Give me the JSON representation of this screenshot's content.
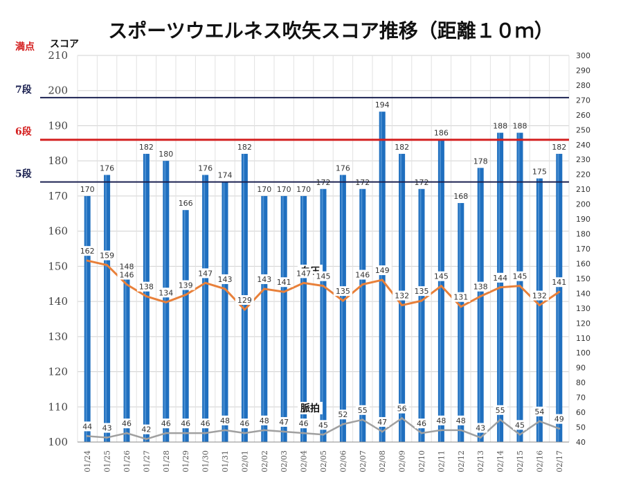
{
  "chart_data": {
    "type": "bar",
    "title": "スポーツウエルネス吹矢スコア推移（距離１０ｍ）",
    "ylabel": "スコア",
    "ylim": [
      100,
      210
    ],
    "y_ticks": [
      100,
      110,
      120,
      130,
      140,
      150,
      160,
      170,
      180,
      190,
      200,
      210
    ],
    "y2lim": [
      40,
      300
    ],
    "y2_ticks": [
      40,
      50,
      60,
      70,
      80,
      90,
      100,
      110,
      120,
      130,
      140,
      150,
      160,
      170,
      180,
      190,
      200,
      210,
      220,
      230,
      240,
      250,
      260,
      270,
      280,
      290,
      300
    ],
    "categories": [
      "01/24",
      "01/25",
      "01/26",
      "01/27",
      "01/28",
      "01/29",
      "01/30",
      "01/31",
      "02/01",
      "02/02",
      "02/03",
      "02/04",
      "02/05",
      "02/06",
      "02/07",
      "02/08",
      "02/09",
      "02/10",
      "02/11",
      "02/12",
      "02/13",
      "02/14",
      "02/15",
      "02/16",
      "02/17"
    ],
    "series": [
      {
        "name": "",
        "kind": "bar",
        "color": "#1f6fbf",
        "values": [
          170,
          176,
          148,
          182,
          180,
          166,
          176,
          174,
          182,
          170,
          170,
          170,
          172,
          176,
          172,
          194,
          182,
          172,
          186,
          168,
          178,
          188,
          188,
          175,
          182
        ]
      },
      {
        "name": "血圧",
        "kind": "line",
        "axis": "right",
        "color": "#e8803a",
        "values": [
          162,
          159,
          146,
          138,
          134,
          139,
          147,
          143,
          129,
          143,
          141,
          147,
          145,
          135,
          146,
          149,
          132,
          135,
          145,
          131,
          138,
          144,
          145,
          132,
          141
        ]
      },
      {
        "name": "脈拍",
        "kind": "line",
        "axis": "right",
        "color": "#a0a0a0",
        "values": [
          44,
          43,
          46,
          42,
          46,
          46,
          46,
          48,
          46,
          48,
          47,
          46,
          45,
          52,
          55,
          47,
          56,
          46,
          48,
          48,
          43,
          55,
          45,
          54,
          49
        ]
      }
    ],
    "reference_lines": [
      {
        "label": "満点",
        "value": 210,
        "color": "#d42020",
        "show_line": false
      },
      {
        "label": "7段",
        "value": 198,
        "color": "#1a2050",
        "show_line": true
      },
      {
        "label": "6段",
        "value": 186,
        "color": "#d42020",
        "show_line": true
      },
      {
        "label": "5段",
        "value": 174,
        "color": "#1a2050",
        "show_line": true
      }
    ],
    "grid": true,
    "legend": "inline"
  }
}
